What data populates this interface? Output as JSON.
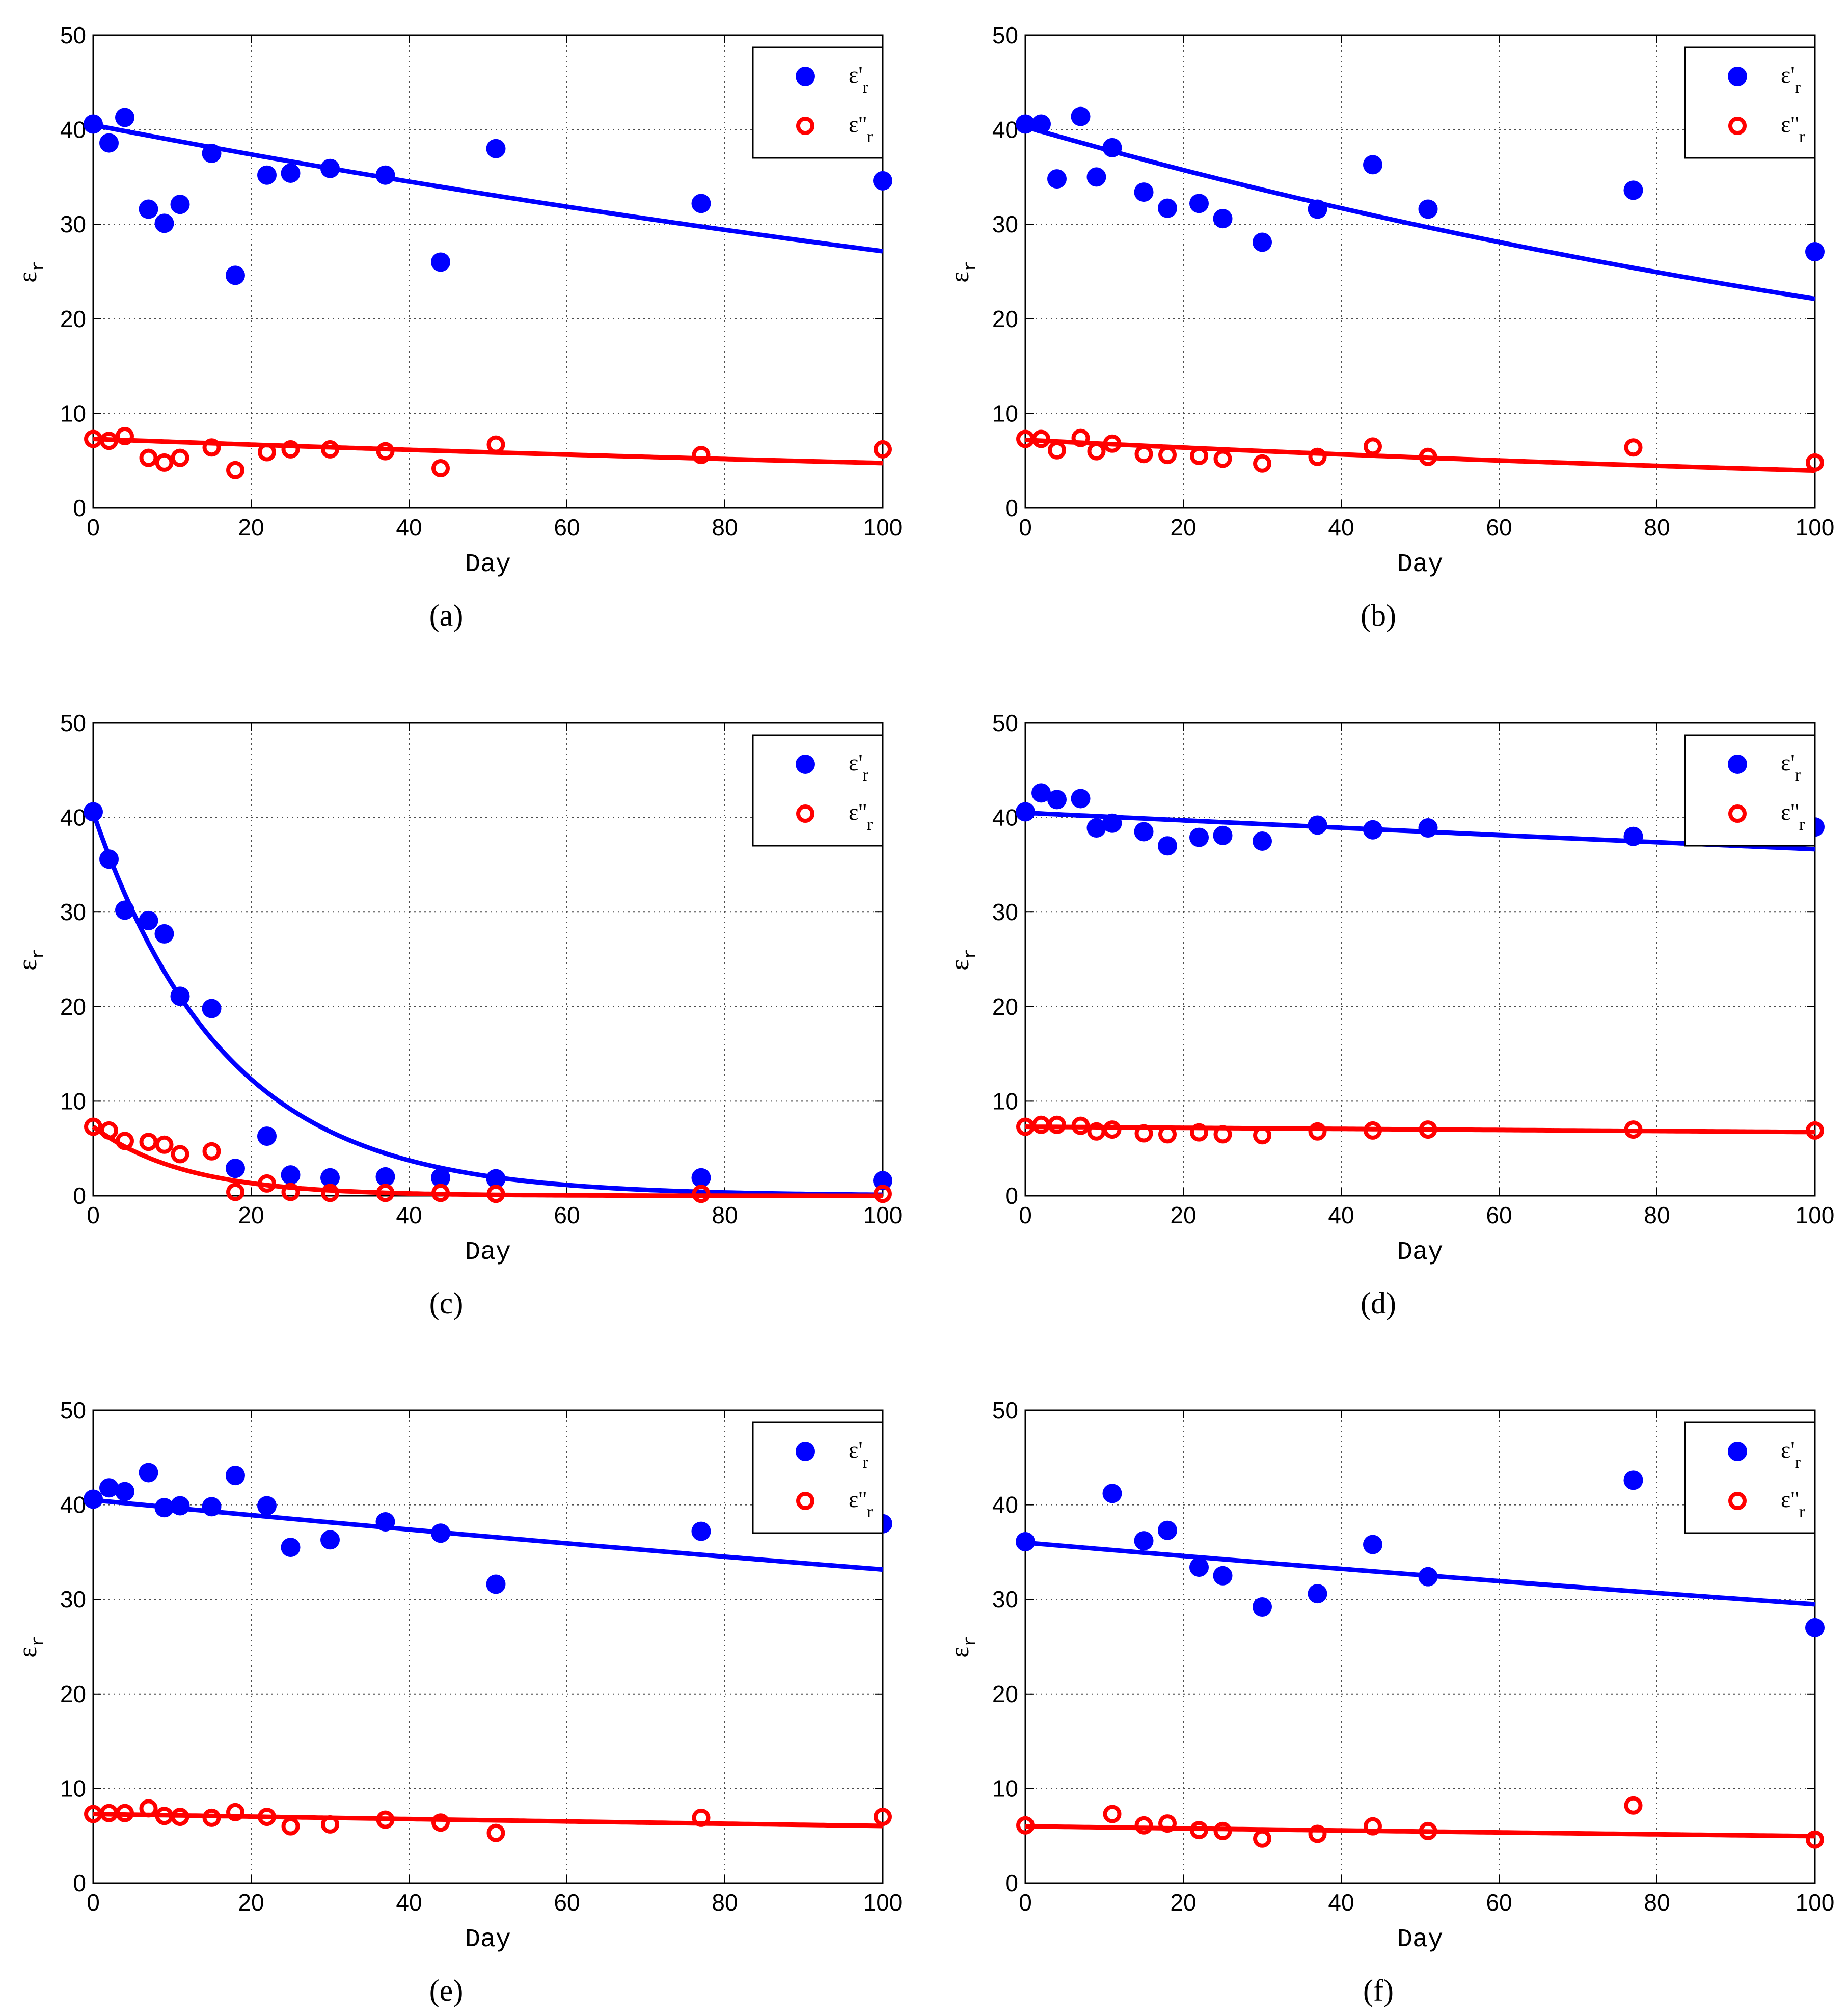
{
  "figure": {
    "colors": {
      "eps_real": "#0000ff",
      "eps_imag": "#ff0000",
      "grid": "#4d4d4d"
    }
  },
  "chart_data": [
    {
      "type": "scatter",
      "caption_letter": "a",
      "caption": "(a)",
      "xlabel": "Day",
      "ylabel": "ε",
      "ylabel_sub": "r",
      "xlim": [
        0,
        100
      ],
      "ylim": [
        0,
        50
      ],
      "xticks": [
        "0",
        "20",
        "40",
        "60",
        "80",
        "100"
      ],
      "yticks": [
        "0",
        "10",
        "20",
        "30",
        "40",
        "50"
      ],
      "grid": true,
      "legend_position": "top-right",
      "series": [
        {
          "name": "ε'",
          "sub": "r",
          "label": "ε'r",
          "marker": "filled",
          "color": "#0000ff",
          "x": [
            0,
            2,
            4,
            7,
            9,
            11,
            15,
            18,
            22,
            25,
            30,
            37,
            44,
            51,
            77,
            100
          ],
          "y": [
            40.6,
            38.6,
            41.3,
            31.6,
            30.1,
            32.1,
            37.5,
            24.6,
            35.2,
            35.4,
            35.9,
            35.2,
            26.0,
            38.0,
            32.2,
            34.6
          ],
          "fit": {
            "model": "exp",
            "y0": 40.5,
            "k": 0.004
          }
        },
        {
          "name": "ε''",
          "sub": "r",
          "label": "ε''r",
          "marker": "open",
          "color": "#ff0000",
          "x": [
            0,
            2,
            4,
            7,
            9,
            11,
            15,
            18,
            22,
            25,
            30,
            37,
            44,
            51,
            77,
            100
          ],
          "y": [
            7.3,
            7.1,
            7.6,
            5.3,
            4.8,
            5.3,
            6.4,
            4.0,
            5.9,
            6.2,
            6.2,
            6.0,
            4.2,
            6.7,
            5.6,
            6.2
          ],
          "fit": {
            "model": "exp",
            "y0": 7.3,
            "k": 0.0043
          }
        }
      ]
    },
    {
      "type": "scatter",
      "caption_letter": "b",
      "caption": "(b)",
      "xlabel": "Day",
      "ylabel": "ε",
      "ylabel_sub": "r",
      "xlim": [
        0,
        100
      ],
      "ylim": [
        0,
        50
      ],
      "xticks": [
        "0",
        "20",
        "40",
        "60",
        "80",
        "100"
      ],
      "yticks": [
        "0",
        "10",
        "20",
        "30",
        "40",
        "50"
      ],
      "grid": true,
      "legend_position": "top-right",
      "series": [
        {
          "name": "ε'",
          "sub": "r",
          "label": "ε'r",
          "marker": "filled",
          "color": "#0000ff",
          "x": [
            0,
            2,
            4,
            7,
            9,
            11,
            15,
            18,
            22,
            25,
            30,
            37,
            44,
            51,
            77,
            100
          ],
          "y": [
            40.6,
            40.6,
            34.8,
            41.4,
            35.0,
            38.1,
            33.4,
            31.7,
            32.2,
            30.6,
            28.1,
            31.6,
            36.3,
            31.6,
            33.6,
            27.1
          ],
          "fit": {
            "model": "exp",
            "y0": 40.3,
            "k": 0.006
          }
        },
        {
          "name": "ε''",
          "sub": "r",
          "label": "ε''r",
          "marker": "open",
          "color": "#ff0000",
          "x": [
            0,
            2,
            4,
            7,
            9,
            11,
            15,
            18,
            22,
            25,
            30,
            37,
            44,
            51,
            77,
            100
          ],
          "y": [
            7.3,
            7.3,
            6.1,
            7.4,
            6.0,
            6.8,
            5.7,
            5.6,
            5.5,
            5.2,
            4.7,
            5.4,
            6.5,
            5.4,
            6.4,
            4.8
          ],
          "fit": {
            "model": "exp",
            "y0": 7.2,
            "k": 0.006
          }
        }
      ]
    },
    {
      "type": "scatter",
      "caption_letter": "c",
      "caption": "(c)",
      "xlabel": "Day",
      "ylabel": "ε",
      "ylabel_sub": "r",
      "xlim": [
        0,
        100
      ],
      "ylim": [
        0,
        50
      ],
      "xticks": [
        "0",
        "20",
        "40",
        "60",
        "80",
        "100"
      ],
      "yticks": [
        "0",
        "10",
        "20",
        "30",
        "40",
        "50"
      ],
      "grid": true,
      "legend_position": "top-right",
      "series": [
        {
          "name": "ε'",
          "sub": "r",
          "label": "ε'r",
          "marker": "filled",
          "color": "#0000ff",
          "x": [
            0,
            2,
            4,
            7,
            9,
            11,
            15,
            18,
            22,
            25,
            30,
            37,
            44,
            51,
            77,
            100
          ],
          "y": [
            40.6,
            35.6,
            30.2,
            29.1,
            27.7,
            21.1,
            19.8,
            2.9,
            6.3,
            2.2,
            1.9,
            2.0,
            1.9,
            1.8,
            1.9,
            1.6
          ],
          "fit": {
            "model": "exp",
            "y0": 40.5,
            "k": 0.0595
          }
        },
        {
          "name": "ε''",
          "sub": "r",
          "label": "ε''r",
          "marker": "open",
          "color": "#ff0000",
          "x": [
            0,
            2,
            4,
            7,
            9,
            11,
            15,
            18,
            22,
            25,
            30,
            37,
            44,
            51,
            77,
            100
          ],
          "y": [
            7.3,
            6.9,
            5.8,
            5.7,
            5.4,
            4.4,
            4.7,
            0.4,
            1.3,
            0.4,
            0.3,
            0.3,
            0.3,
            0.2,
            0.2,
            0.2
          ],
          "fit": {
            "model": "exp",
            "y0": 7.3,
            "k": 0.085
          }
        }
      ]
    },
    {
      "type": "scatter",
      "caption_letter": "d",
      "caption": "(d)",
      "xlabel": "Day",
      "ylabel": "ε",
      "ylabel_sub": "r",
      "xlim": [
        0,
        100
      ],
      "ylim": [
        0,
        50
      ],
      "xticks": [
        "0",
        "20",
        "40",
        "60",
        "80",
        "100"
      ],
      "yticks": [
        "0",
        "10",
        "20",
        "30",
        "40",
        "50"
      ],
      "grid": true,
      "legend_position": "top-right",
      "series": [
        {
          "name": "ε'",
          "sub": "r",
          "label": "ε'r",
          "marker": "filled",
          "color": "#0000ff",
          "x": [
            0,
            2,
            4,
            7,
            9,
            11,
            15,
            18,
            22,
            25,
            30,
            37,
            44,
            51,
            77,
            100
          ],
          "y": [
            40.6,
            42.6,
            41.9,
            42.0,
            38.9,
            39.4,
            38.5,
            37.0,
            37.9,
            38.1,
            37.5,
            39.2,
            38.7,
            38.9,
            38.0,
            39.0
          ],
          "fit": {
            "model": "exp",
            "y0": 40.5,
            "k": 0.001
          }
        },
        {
          "name": "ε''",
          "sub": "r",
          "label": "ε''r",
          "marker": "open",
          "color": "#ff0000",
          "x": [
            0,
            2,
            4,
            7,
            9,
            11,
            15,
            18,
            22,
            25,
            30,
            37,
            44,
            51,
            77,
            100
          ],
          "y": [
            7.3,
            7.5,
            7.5,
            7.4,
            6.8,
            7.0,
            6.6,
            6.5,
            6.7,
            6.5,
            6.4,
            6.8,
            6.9,
            7.0,
            7.0,
            6.9
          ],
          "fit": {
            "model": "exp",
            "y0": 7.3,
            "k": 0.0008
          }
        }
      ]
    },
    {
      "type": "scatter",
      "caption_letter": "e",
      "caption": "(e)",
      "xlabel": "Day",
      "ylabel": "ε",
      "ylabel_sub": "r",
      "xlim": [
        0,
        100
      ],
      "ylim": [
        0,
        50
      ],
      "xticks": [
        "0",
        "20",
        "40",
        "60",
        "80",
        "100"
      ],
      "yticks": [
        "0",
        "10",
        "20",
        "30",
        "40",
        "50"
      ],
      "grid": true,
      "legend_position": "top-right",
      "series": [
        {
          "name": "ε'",
          "sub": "r",
          "label": "ε'r",
          "marker": "filled",
          "color": "#0000ff",
          "x": [
            0,
            2,
            4,
            7,
            9,
            11,
            15,
            18,
            22,
            25,
            30,
            37,
            44,
            51,
            77,
            100
          ],
          "y": [
            40.6,
            41.8,
            41.4,
            43.4,
            39.7,
            39.9,
            39.8,
            43.1,
            39.9,
            35.5,
            36.3,
            38.2,
            37.0,
            31.6,
            37.2,
            38.0
          ],
          "fit": {
            "model": "exp",
            "y0": 40.5,
            "k": 0.002
          }
        },
        {
          "name": "ε''",
          "sub": "r",
          "label": "ε''r",
          "marker": "open",
          "color": "#ff0000",
          "x": [
            0,
            2,
            4,
            7,
            9,
            11,
            15,
            18,
            22,
            25,
            30,
            37,
            44,
            51,
            77,
            100
          ],
          "y": [
            7.3,
            7.4,
            7.4,
            7.9,
            7.1,
            7.0,
            6.9,
            7.5,
            7.0,
            6.0,
            6.2,
            6.7,
            6.4,
            5.3,
            6.9,
            7.0
          ],
          "fit": {
            "model": "exp",
            "y0": 7.3,
            "k": 0.0019
          }
        }
      ]
    },
    {
      "type": "scatter",
      "caption_letter": "f",
      "caption": "(f)",
      "xlabel": "Day",
      "ylabel": "ε",
      "ylabel_sub": "r",
      "xlim": [
        0,
        100
      ],
      "ylim": [
        0,
        50
      ],
      "xticks": [
        "0",
        "20",
        "40",
        "60",
        "80",
        "100"
      ],
      "yticks": [
        "0",
        "10",
        "20",
        "30",
        "40",
        "50"
      ],
      "grid": true,
      "legend_position": "top-right",
      "series": [
        {
          "name": "ε'",
          "sub": "r",
          "label": "ε'r",
          "marker": "filled",
          "color": "#0000ff",
          "x": [
            0,
            11,
            15,
            18,
            22,
            25,
            30,
            37,
            44,
            51,
            77,
            100
          ],
          "y": [
            36.1,
            41.2,
            36.2,
            37.3,
            33.4,
            32.5,
            29.2,
            30.6,
            35.8,
            32.4,
            42.6,
            27.0
          ],
          "fit": {
            "model": "exp",
            "y0": 36.0,
            "k": 0.002
          }
        },
        {
          "name": "ε''",
          "sub": "r",
          "label": "ε''r",
          "marker": "open",
          "color": "#ff0000",
          "x": [
            0,
            11,
            15,
            18,
            22,
            25,
            30,
            37,
            44,
            51,
            77,
            100
          ],
          "y": [
            6.1,
            7.3,
            6.1,
            6.3,
            5.6,
            5.5,
            4.7,
            5.2,
            6.0,
            5.5,
            8.2,
            4.6
          ],
          "fit": {
            "model": "exp",
            "y0": 6.0,
            "k": 0.0019
          }
        }
      ]
    }
  ]
}
